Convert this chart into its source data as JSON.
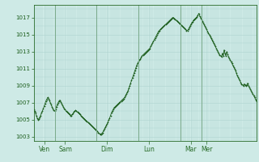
{
  "ylabel_values": [
    1003,
    1005,
    1007,
    1009,
    1011,
    1013,
    1015,
    1017
  ],
  "ylim": [
    1002.5,
    1018.5
  ],
  "background_color": "#ceeae6",
  "grid_color": "#aed4d0",
  "line_color": "#1a5c1a",
  "marker_color": "#1a5c1a",
  "day_labels": [
    "Ven",
    "Sam",
    "Dim",
    "Lun",
    "Mar",
    "Mer"
  ],
  "day_positions": [
    12,
    36,
    84,
    132,
    180,
    198
  ],
  "vline_positions": [
    24,
    72,
    120,
    168,
    192
  ],
  "pressure_data": [
    1006.2,
    1006.0,
    1005.8,
    1005.5,
    1005.2,
    1005.0,
    1005.1,
    1005.3,
    1005.5,
    1005.8,
    1006.0,
    1006.3,
    1006.6,
    1006.9,
    1007.2,
    1007.4,
    1007.6,
    1007.5,
    1007.3,
    1007.0,
    1006.8,
    1006.5,
    1006.3,
    1006.1,
    1006.0,
    1006.2,
    1006.5,
    1006.8,
    1007.0,
    1007.2,
    1007.3,
    1007.1,
    1006.9,
    1006.7,
    1006.5,
    1006.3,
    1006.2,
    1006.0,
    1005.9,
    1005.8,
    1005.7,
    1005.6,
    1005.5,
    1005.5,
    1005.6,
    1005.7,
    1005.9,
    1006.0,
    1006.1,
    1006.0,
    1005.9,
    1005.8,
    1005.7,
    1005.6,
    1005.5,
    1005.4,
    1005.3,
    1005.2,
    1005.1,
    1005.0,
    1004.9,
    1004.8,
    1004.7,
    1004.6,
    1004.5,
    1004.4,
    1004.3,
    1004.2,
    1004.1,
    1004.0,
    1003.9,
    1003.8,
    1003.7,
    1003.6,
    1003.5,
    1003.4,
    1003.3,
    1003.3,
    1003.4,
    1003.5,
    1003.7,
    1003.9,
    1004.1,
    1004.3,
    1004.5,
    1004.7,
    1005.0,
    1005.2,
    1005.5,
    1005.8,
    1006.0,
    1006.2,
    1006.4,
    1006.5,
    1006.6,
    1006.7,
    1006.8,
    1006.9,
    1007.0,
    1007.1,
    1007.2,
    1007.3,
    1007.4,
    1007.5,
    1007.6,
    1007.8,
    1008.0,
    1008.2,
    1008.4,
    1008.7,
    1009.0,
    1009.3,
    1009.6,
    1009.9,
    1010.2,
    1010.5,
    1010.8,
    1011.1,
    1011.4,
    1011.6,
    1011.8,
    1012.0,
    1012.1,
    1012.3,
    1012.5,
    1012.6,
    1012.7,
    1012.8,
    1012.9,
    1013.0,
    1013.1,
    1013.2,
    1013.3,
    1013.4,
    1013.6,
    1013.8,
    1014.0,
    1014.2,
    1014.4,
    1014.6,
    1014.8,
    1015.0,
    1015.2,
    1015.4,
    1015.5,
    1015.6,
    1015.7,
    1015.8,
    1015.9,
    1016.0,
    1016.1,
    1016.2,
    1016.3,
    1016.4,
    1016.5,
    1016.6,
    1016.7,
    1016.8,
    1016.9,
    1017.0,
    1017.0,
    1016.9,
    1016.8,
    1016.7,
    1016.6,
    1016.5,
    1016.4,
    1016.3,
    1016.2,
    1016.1,
    1016.0,
    1015.9,
    1015.8,
    1015.7,
    1015.6,
    1015.5,
    1015.5,
    1015.6,
    1015.8,
    1016.0,
    1016.2,
    1016.4,
    1016.5,
    1016.7,
    1016.8,
    1016.9,
    1017.0,
    1017.1,
    1017.3,
    1017.5,
    1017.2,
    1017.0,
    1016.8,
    1016.6,
    1016.4,
    1016.2,
    1016.0,
    1015.8,
    1015.6,
    1015.4,
    1015.2,
    1015.0,
    1014.8,
    1014.6,
    1014.4,
    1014.2,
    1014.0,
    1013.8,
    1013.6,
    1013.4,
    1013.2,
    1013.0,
    1012.8,
    1012.6,
    1012.5,
    1012.4,
    1012.8,
    1012.5,
    1013.2,
    1012.8,
    1012.5,
    1013.0,
    1012.7,
    1012.4,
    1012.2,
    1012.0,
    1011.8,
    1011.6,
    1011.4,
    1011.2,
    1011.0,
    1010.8,
    1010.5,
    1010.2,
    1010.0,
    1009.8,
    1009.6,
    1009.4,
    1009.2,
    1009.1,
    1009.0,
    1009.2,
    1009.1,
    1009.0,
    1009.1,
    1009.3,
    1009.0,
    1008.8,
    1008.6,
    1008.4,
    1008.2,
    1008.0,
    1007.8,
    1007.6,
    1007.4,
    1007.2
  ]
}
